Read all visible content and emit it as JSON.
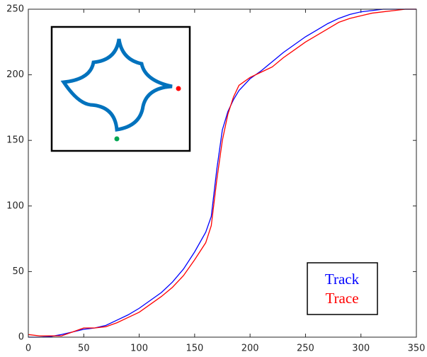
{
  "chart_data": {
    "type": "line",
    "x": [
      0,
      10,
      20,
      30,
      40,
      50,
      60,
      70,
      80,
      90,
      100,
      110,
      120,
      130,
      140,
      150,
      160,
      165,
      170,
      175,
      180,
      185,
      190,
      200,
      210,
      220,
      230,
      240,
      250,
      260,
      270,
      280,
      290,
      300,
      310,
      320,
      330,
      340,
      350
    ],
    "series": [
      {
        "name": "Track",
        "color": "#0000ff",
        "values": [
          0,
          0,
          0.5,
          2,
          4,
          6,
          7,
          9,
          13,
          17,
          22,
          28,
          34,
          42,
          52,
          65,
          80,
          92,
          128,
          158,
          172,
          181,
          188,
          197,
          203,
          210,
          217,
          223,
          229,
          234,
          239,
          243,
          246,
          248,
          249,
          250,
          250,
          250,
          250
        ]
      },
      {
        "name": "Trace",
        "color": "#ff0000",
        "values": [
          2,
          1,
          1,
          1,
          4,
          7,
          7,
          8,
          11,
          15,
          19,
          25,
          31,
          38,
          47,
          59,
          72,
          85,
          120,
          150,
          170,
          183,
          192,
          198,
          202,
          206,
          213,
          219,
          225,
          230,
          235,
          240,
          243,
          245,
          247,
          248,
          249,
          250,
          250
        ]
      }
    ],
    "xlim": [
      0,
      350
    ],
    "ylim": [
      0,
      250
    ],
    "xticks": [
      0,
      50,
      100,
      150,
      200,
      250,
      300,
      350
    ],
    "yticks": [
      0,
      50,
      100,
      150,
      200,
      250
    ],
    "legend": "lower right"
  }
}
